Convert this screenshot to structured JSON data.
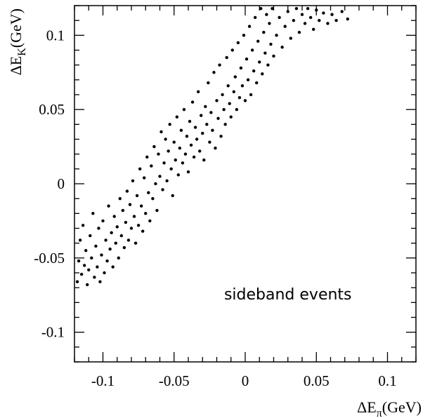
{
  "chart_data": {
    "type": "scatter",
    "xlabel": {
      "main": "ΔE",
      "sub": "π",
      "unit": "(GeV)"
    },
    "ylabel": {
      "main": "ΔE",
      "sub": "K",
      "unit": "(GeV)"
    },
    "xlim": [
      -0.12,
      0.12
    ],
    "ylim": [
      -0.12,
      0.12
    ],
    "xticks": [
      {
        "value": -0.1,
        "label": "-0.1"
      },
      {
        "value": -0.05,
        "label": "-0.05"
      },
      {
        "value": 0,
        "label": "0"
      },
      {
        "value": 0.05,
        "label": "0.05"
      },
      {
        "value": 0.1,
        "label": "0.1"
      }
    ],
    "yticks": [
      {
        "value": -0.1,
        "label": "-0.1"
      },
      {
        "value": -0.05,
        "label": "-0.05"
      },
      {
        "value": 0,
        "label": "0"
      },
      {
        "value": 0.05,
        "label": "0.05"
      },
      {
        "value": 0.1,
        "label": "0.1"
      }
    ],
    "annotation": {
      "text": "sideband events",
      "x": 0.03,
      "y": -0.078
    },
    "grid": false,
    "points": [
      [
        -0.118,
        -0.066
      ],
      [
        -0.117,
        -0.052
      ],
      [
        -0.116,
        -0.038
      ],
      [
        -0.115,
        -0.061
      ],
      [
        -0.114,
        -0.028
      ],
      [
        -0.113,
        -0.055
      ],
      [
        -0.112,
        -0.045
      ],
      [
        -0.111,
        -0.068
      ],
      [
        -0.11,
        -0.058
      ],
      [
        -0.109,
        -0.035
      ],
      [
        -0.108,
        -0.05
      ],
      [
        -0.107,
        -0.02
      ],
      [
        -0.106,
        -0.063
      ],
      [
        -0.105,
        -0.042
      ],
      [
        -0.104,
        -0.056
      ],
      [
        -0.103,
        -0.03
      ],
      [
        -0.102,
        -0.066
      ],
      [
        -0.101,
        -0.048
      ],
      [
        -0.1,
        -0.025
      ],
      [
        -0.099,
        -0.06
      ],
      [
        -0.098,
        -0.038
      ],
      [
        -0.097,
        -0.052
      ],
      [
        -0.096,
        -0.015
      ],
      [
        -0.095,
        -0.044
      ],
      [
        -0.094,
        -0.033
      ],
      [
        -0.093,
        -0.056
      ],
      [
        -0.092,
        -0.022
      ],
      [
        -0.091,
        -0.04
      ],
      [
        -0.09,
        -0.029
      ],
      [
        -0.089,
        -0.05
      ],
      [
        -0.088,
        -0.01
      ],
      [
        -0.087,
        -0.035
      ],
      [
        -0.086,
        -0.018
      ],
      [
        -0.085,
        -0.043
      ],
      [
        -0.084,
        -0.026
      ],
      [
        -0.083,
        -0.005
      ],
      [
        -0.082,
        -0.038
      ],
      [
        -0.081,
        -0.014
      ],
      [
        -0.08,
        -0.03
      ],
      [
        -0.079,
        0.002
      ],
      [
        -0.078,
        -0.022
      ],
      [
        -0.077,
        -0.04
      ],
      [
        -0.076,
        -0.008
      ],
      [
        -0.075,
        -0.028
      ],
      [
        -0.074,
        0.01
      ],
      [
        -0.073,
        -0.015
      ],
      [
        -0.072,
        -0.032
      ],
      [
        -0.071,
        0.004
      ],
      [
        -0.07,
        -0.02
      ],
      [
        -0.069,
        0.018
      ],
      [
        -0.068,
        -0.006
      ],
      [
        -0.067,
        -0.025
      ],
      [
        -0.066,
        0.012
      ],
      [
        -0.065,
        -0.01
      ],
      [
        -0.064,
        0.025
      ],
      [
        -0.063,
        0.0
      ],
      [
        -0.062,
        -0.018
      ],
      [
        -0.061,
        0.02
      ],
      [
        -0.06,
        0.005
      ],
      [
        -0.059,
        0.035
      ],
      [
        -0.058,
        -0.004
      ],
      [
        -0.057,
        0.014
      ],
      [
        -0.056,
        0.03
      ],
      [
        -0.055,
        0.002
      ],
      [
        -0.054,
        0.022
      ],
      [
        -0.053,
        0.04
      ],
      [
        -0.052,
        0.01
      ],
      [
        -0.051,
        -0.008
      ],
      [
        -0.05,
        0.028
      ],
      [
        -0.049,
        0.016
      ],
      [
        -0.048,
        0.045
      ],
      [
        -0.047,
        0.006
      ],
      [
        -0.046,
        0.024
      ],
      [
        -0.045,
        0.036
      ],
      [
        -0.044,
        0.014
      ],
      [
        -0.043,
        0.05
      ],
      [
        -0.042,
        0.02
      ],
      [
        -0.041,
        0.032
      ],
      [
        -0.04,
        0.008
      ],
      [
        -0.039,
        0.042
      ],
      [
        -0.038,
        0.026
      ],
      [
        -0.037,
        0.055
      ],
      [
        -0.036,
        0.018
      ],
      [
        -0.035,
        0.038
      ],
      [
        -0.034,
        0.03
      ],
      [
        -0.033,
        0.062
      ],
      [
        -0.032,
        0.022
      ],
      [
        -0.031,
        0.046
      ],
      [
        -0.03,
        0.034
      ],
      [
        -0.029,
        0.016
      ],
      [
        -0.028,
        0.052
      ],
      [
        -0.027,
        0.04
      ],
      [
        -0.026,
        0.068
      ],
      [
        -0.025,
        0.028
      ],
      [
        -0.024,
        0.048
      ],
      [
        -0.023,
        0.036
      ],
      [
        -0.022,
        0.075
      ],
      [
        -0.021,
        0.024
      ],
      [
        -0.02,
        0.056
      ],
      [
        -0.019,
        0.044
      ],
      [
        -0.018,
        0.08
      ],
      [
        -0.017,
        0.032
      ],
      [
        -0.016,
        0.06
      ],
      [
        -0.015,
        0.05
      ],
      [
        -0.014,
        0.04
      ],
      [
        -0.013,
        0.085
      ],
      [
        -0.012,
        0.066
      ],
      [
        -0.011,
        0.054
      ],
      [
        -0.01,
        0.045
      ],
      [
        -0.009,
        0.09
      ],
      [
        -0.008,
        0.062
      ],
      [
        -0.007,
        0.072
      ],
      [
        -0.006,
        0.05
      ],
      [
        -0.005,
        0.095
      ],
      [
        -0.004,
        0.058
      ],
      [
        -0.003,
        0.078
      ],
      [
        -0.002,
        0.066
      ],
      [
        -0.001,
        0.1
      ],
      [
        0.0,
        0.056
      ],
      [
        0.001,
        0.084
      ],
      [
        0.002,
        0.07
      ],
      [
        0.003,
        0.106
      ],
      [
        0.004,
        0.06
      ],
      [
        0.005,
        0.09
      ],
      [
        0.006,
        0.076
      ],
      [
        0.007,
        0.112
      ],
      [
        0.008,
        0.068
      ],
      [
        0.009,
        0.096
      ],
      [
        0.01,
        0.082
      ],
      [
        0.011,
        0.118
      ],
      [
        0.012,
        0.074
      ],
      [
        0.013,
        0.102
      ],
      [
        0.014,
        0.088
      ],
      [
        0.015,
        0.114
      ],
      [
        0.016,
        0.08
      ],
      [
        0.017,
        0.108
      ],
      [
        0.018,
        0.094
      ],
      [
        0.019,
        0.118
      ],
      [
        0.02,
        0.086
      ],
      [
        0.022,
        0.1
      ],
      [
        0.024,
        0.112
      ],
      [
        0.026,
        0.092
      ],
      [
        0.028,
        0.106
      ],
      [
        0.03,
        0.116
      ],
      [
        0.032,
        0.098
      ],
      [
        0.034,
        0.11
      ],
      [
        0.036,
        0.118
      ],
      [
        0.038,
        0.102
      ],
      [
        0.04,
        0.114
      ],
      [
        0.042,
        0.108
      ],
      [
        0.044,
        0.118
      ],
      [
        0.046,
        0.112
      ],
      [
        0.048,
        0.104
      ],
      [
        0.05,
        0.117
      ],
      [
        0.052,
        0.11
      ],
      [
        0.055,
        0.115
      ],
      [
        0.058,
        0.108
      ],
      [
        0.061,
        0.114
      ],
      [
        0.064,
        0.11
      ],
      [
        0.068,
        0.116
      ],
      [
        0.072,
        0.111
      ]
    ]
  }
}
